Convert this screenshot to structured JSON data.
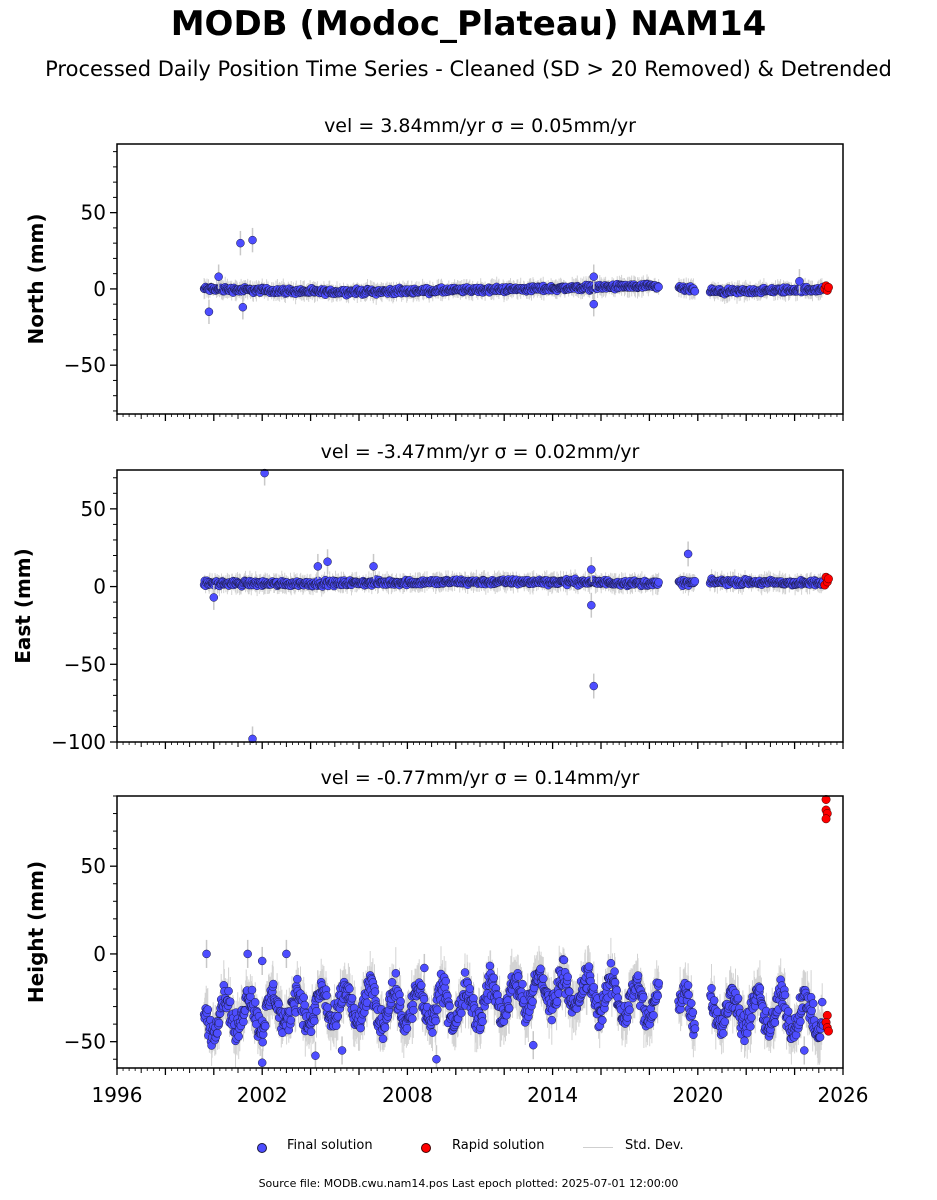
{
  "title": "MODB (Modoc_Plateau) NAM14",
  "subtitle": "Processed Daily Position Time Series - Cleaned (SD > 20 Removed) & Detrended",
  "legend": {
    "final_label": "Final solution",
    "rapid_label": "Rapid solution",
    "std_label": "Std. Dev."
  },
  "footer": "Source file: MODB.cwu.nam14.pos  Last epoch plotted: 2025-07-01 12:00:00",
  "colors": {
    "final": "#4d4dff",
    "rapid": "#ff0000",
    "std": "#c8c8c8",
    "edge": "#1a1a40"
  },
  "chart_data": [
    {
      "type": "scatter",
      "panel": "north",
      "title": "vel = 3.84mm/yr   σ = 0.05mm/yr",
      "ylabel": "North (mm)",
      "xlim": [
        1996,
        2026
      ],
      "ylim": [
        -82,
        95
      ],
      "yticks": [
        -50,
        0,
        50
      ],
      "ytick_labels": [
        "−50",
        "0",
        "50"
      ],
      "band": {
        "center": 0,
        "halfwidth": 2.5,
        "trend": [
          [
            1999.6,
            0
          ],
          [
            2004.5,
            -2
          ],
          [
            2008,
            -1.5
          ],
          [
            2013,
            0
          ],
          [
            2017,
            1.5
          ],
          [
            2018.3,
            1.5
          ],
          [
            2021,
            -2
          ],
          [
            2025.3,
            0
          ]
        ]
      },
      "gaps": [
        [
          2018.4,
          2019.2
        ],
        [
          2019.9,
          2020.5
        ]
      ],
      "outliers": [
        {
          "x": 2001.1,
          "y": 30
        },
        {
          "x": 2001.6,
          "y": 32
        },
        {
          "x": 1999.8,
          "y": -15
        },
        {
          "x": 2000.2,
          "y": 8
        },
        {
          "x": 2001.2,
          "y": -12
        },
        {
          "x": 2015.7,
          "y": -10
        },
        {
          "x": 2015.7,
          "y": 8
        },
        {
          "x": 2024.2,
          "y": 5
        }
      ],
      "rapid": [
        {
          "x": 2025.25,
          "y": 0
        },
        {
          "x": 2025.3,
          "y": 2
        },
        {
          "x": 2025.35,
          "y": -1
        },
        {
          "x": 2025.4,
          "y": 1
        }
      ]
    },
    {
      "type": "scatter",
      "panel": "east",
      "title": "vel = -3.47mm/yr   σ = 0.02mm/yr",
      "ylabel": "East (mm)",
      "xlim": [
        1996,
        2026
      ],
      "ylim": [
        -100,
        75
      ],
      "yticks": [
        -100,
        -50,
        0,
        50
      ],
      "ytick_labels": [
        "−100",
        "−50",
        "0",
        "50"
      ],
      "band": {
        "center": 2,
        "halfwidth": 2.5,
        "trend": [
          [
            1999.6,
            2
          ],
          [
            2004,
            2
          ],
          [
            2010,
            3
          ],
          [
            2015,
            3
          ],
          [
            2018.3,
            2
          ],
          [
            2021,
            3
          ],
          [
            2025.3,
            2
          ]
        ]
      },
      "gaps": [
        [
          2018.4,
          2019.2
        ],
        [
          2019.9,
          2020.5
        ]
      ],
      "outliers": [
        {
          "x": 2002.1,
          "y": 73
        },
        {
          "x": 2001.6,
          "y": -98
        },
        {
          "x": 2015.7,
          "y": -64
        },
        {
          "x": 2015.6,
          "y": -12
        },
        {
          "x": 2019.6,
          "y": 21
        },
        {
          "x": 2004.7,
          "y": 16
        },
        {
          "x": 2004.3,
          "y": 13
        },
        {
          "x": 2006.6,
          "y": 13
        },
        {
          "x": 2000.0,
          "y": -7
        },
        {
          "x": 2015.6,
          "y": 11
        }
      ],
      "rapid": [
        {
          "x": 2025.25,
          "y": 1
        },
        {
          "x": 2025.3,
          "y": 6
        },
        {
          "x": 2025.35,
          "y": 3
        },
        {
          "x": 2025.4,
          "y": 5
        }
      ]
    },
    {
      "type": "scatter",
      "panel": "height",
      "title": "vel = -0.77mm/yr   σ = 0.14mm/yr",
      "ylabel": "Height (mm)",
      "xlim": [
        1996,
        2026
      ],
      "ylim": [
        -65,
        90
      ],
      "yticks": [
        -50,
        0,
        50
      ],
      "ytick_labels": [
        "−50",
        "0",
        "50"
      ],
      "xticks": [
        1996,
        2002,
        2008,
        2014,
        2020,
        2026
      ],
      "xtick_labels": [
        "1996",
        "2002",
        "2008",
        "2014",
        "2020",
        "2026"
      ],
      "band": {
        "center": -30,
        "halfwidth": 12,
        "seasonal": 10,
        "trend": [
          [
            1999.6,
            -35
          ],
          [
            2005,
            -30
          ],
          [
            2010,
            -30
          ],
          [
            2014,
            -20
          ],
          [
            2018,
            -28
          ],
          [
            2021,
            -32
          ],
          [
            2025.3,
            -35
          ]
        ]
      },
      "gaps": [
        [
          2018.4,
          2019.2
        ],
        [
          2019.9,
          2020.5
        ]
      ],
      "outliers": [
        {
          "x": 1999.7,
          "y": 0
        },
        {
          "x": 2001.4,
          "y": 0
        },
        {
          "x": 2002.0,
          "y": -4
        },
        {
          "x": 2003.0,
          "y": 0
        },
        {
          "x": 2008.7,
          "y": -8
        },
        {
          "x": 2002.0,
          "y": -62
        },
        {
          "x": 2004.2,
          "y": -58
        },
        {
          "x": 2009.2,
          "y": -60
        },
        {
          "x": 2005.3,
          "y": -55
        },
        {
          "x": 2013.2,
          "y": -52
        },
        {
          "x": 2024.4,
          "y": -55
        }
      ],
      "rapid": [
        {
          "x": 2025.3,
          "y": 88
        },
        {
          "x": 2025.3,
          "y": 82
        },
        {
          "x": 2025.35,
          "y": 80
        },
        {
          "x": 2025.3,
          "y": 77
        },
        {
          "x": 2025.35,
          "y": -35
        },
        {
          "x": 2025.3,
          "y": -39
        },
        {
          "x": 2025.35,
          "y": -42
        },
        {
          "x": 2025.4,
          "y": -44
        }
      ]
    }
  ]
}
